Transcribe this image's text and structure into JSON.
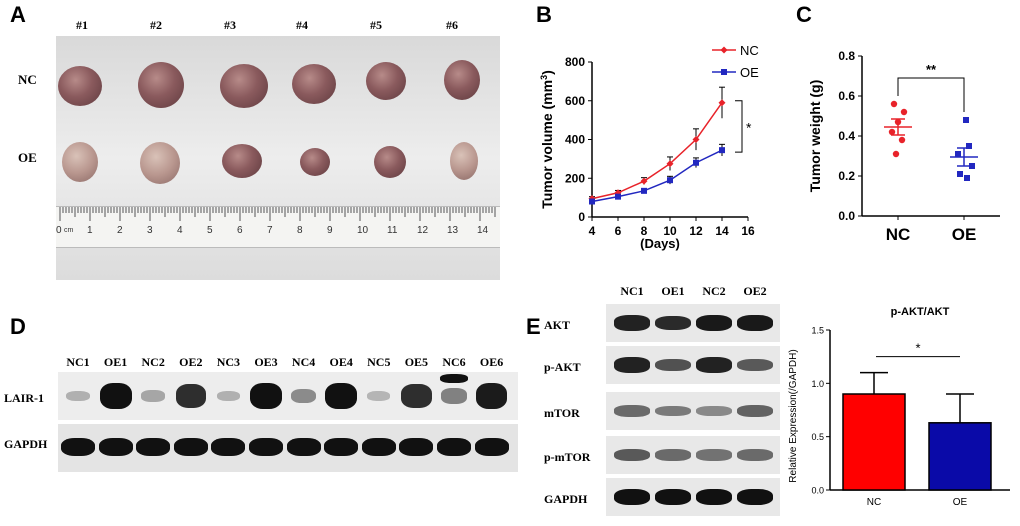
{
  "panels": {
    "A": "A",
    "B": "B",
    "C": "C",
    "D": "D",
    "E": "E"
  },
  "panelA": {
    "samples": [
      "#1",
      "#2",
      "#3",
      "#4",
      "#5",
      "#6"
    ],
    "rows": [
      "NC",
      "OE"
    ],
    "ruler_numbers": [
      "0",
      "cm",
      "1",
      "2",
      "3",
      "4",
      "5",
      "6",
      "7",
      "8",
      "9",
      "10",
      "11",
      "12",
      "13",
      "14"
    ]
  },
  "chart_data": [
    {
      "type": "line",
      "panel": "B",
      "xlabel": "(Days)",
      "ylabel": "Tumor volume (mm3)",
      "ylabel_base": "Tumor volume (mm",
      "ylabel_sup": "3",
      "ylabel_end": ")",
      "x": [
        4,
        6,
        8,
        10,
        12,
        14
      ],
      "xlim": [
        4,
        16
      ],
      "ylim": [
        0,
        800
      ],
      "xticks": [
        "4",
        "6",
        "8",
        "10",
        "12",
        "14",
        "16"
      ],
      "yticks": [
        "0",
        "200",
        "400",
        "600",
        "800"
      ],
      "series": [
        {
          "name": "NC",
          "color": "#e8232a",
          "values": [
            95,
            125,
            185,
            275,
            400,
            590
          ],
          "errors": [
            10,
            12,
            18,
            35,
            55,
            80
          ]
        },
        {
          "name": "OE",
          "color": "#2228c0",
          "values": [
            80,
            105,
            135,
            190,
            280,
            345
          ],
          "errors": [
            8,
            10,
            12,
            20,
            25,
            30
          ]
        }
      ],
      "significance": "*",
      "legend": "top-right"
    },
    {
      "type": "scatter",
      "panel": "C",
      "ylabel": "Tumor weight (g)",
      "categories": [
        "NC",
        "OE"
      ],
      "ylim": [
        0.0,
        0.8
      ],
      "yticks": [
        "0.0",
        "0.2",
        "0.4",
        "0.6",
        "0.8"
      ],
      "series": [
        {
          "name": "NC",
          "color": "#e8232a",
          "points": [
            0.56,
            0.52,
            0.47,
            0.42,
            0.38,
            0.31
          ],
          "mean": 0.445,
          "sem": 0.04
        },
        {
          "name": "OE",
          "color": "#2228c0",
          "points": [
            0.48,
            0.35,
            0.31,
            0.25,
            0.21,
            0.19
          ],
          "mean": 0.295,
          "sem": 0.045
        }
      ],
      "significance": "**"
    },
    {
      "type": "bar",
      "panel": "E",
      "title": "p-AKT/AKT",
      "ylabel": "Relative Expression(/GAPDH)",
      "categories": [
        "NC",
        "OE"
      ],
      "ylim": [
        0.0,
        1.5
      ],
      "yticks": [
        "0.0",
        "0.5",
        "1.0",
        "1.5"
      ],
      "values": [
        0.9,
        0.63
      ],
      "errors": [
        0.2,
        0.27
      ],
      "colors": [
        "#ff0000",
        "#0a0aa8"
      ],
      "significance": "*"
    }
  ],
  "panelD": {
    "lanes": [
      "NC1",
      "OE1",
      "NC2",
      "OE2",
      "NC3",
      "OE3",
      "NC4",
      "OE4",
      "NC5",
      "OE5",
      "NC6",
      "OE6"
    ],
    "rows": [
      "LAIR-1",
      "GAPDH"
    ]
  },
  "panelE_blot": {
    "lanes": [
      "NC1",
      "OE1",
      "NC2",
      "OE2"
    ],
    "rows": [
      "AKT",
      "p-AKT",
      "mTOR",
      "p-mTOR",
      "GAPDH"
    ]
  }
}
